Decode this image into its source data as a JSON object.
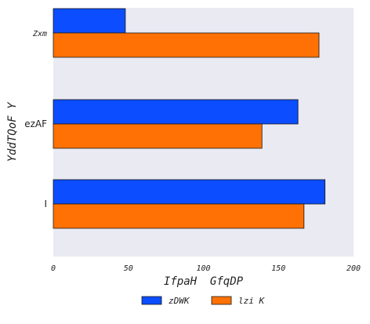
{
  "chart_data": {
    "type": "bar",
    "orientation": "horizontal",
    "categories": [
      "Zxm",
      "ezAF",
      "I"
    ],
    "series": [
      {
        "name": "zDWK",
        "color": "#0b4dff",
        "values": [
          48,
          163,
          181
        ]
      },
      {
        "name": "lzi K",
        "color": "#ff7105",
        "values": [
          177,
          139,
          167
        ]
      }
    ],
    "xlabel": "IfpaH  GfqDP",
    "ylabel": "YddTQoF Y",
    "xlim": [
      0,
      200
    ],
    "xticks": [
      0,
      50,
      100,
      150,
      200
    ],
    "grid": false,
    "background": "#eaeaf2",
    "legend_position": "bottom-center"
  }
}
